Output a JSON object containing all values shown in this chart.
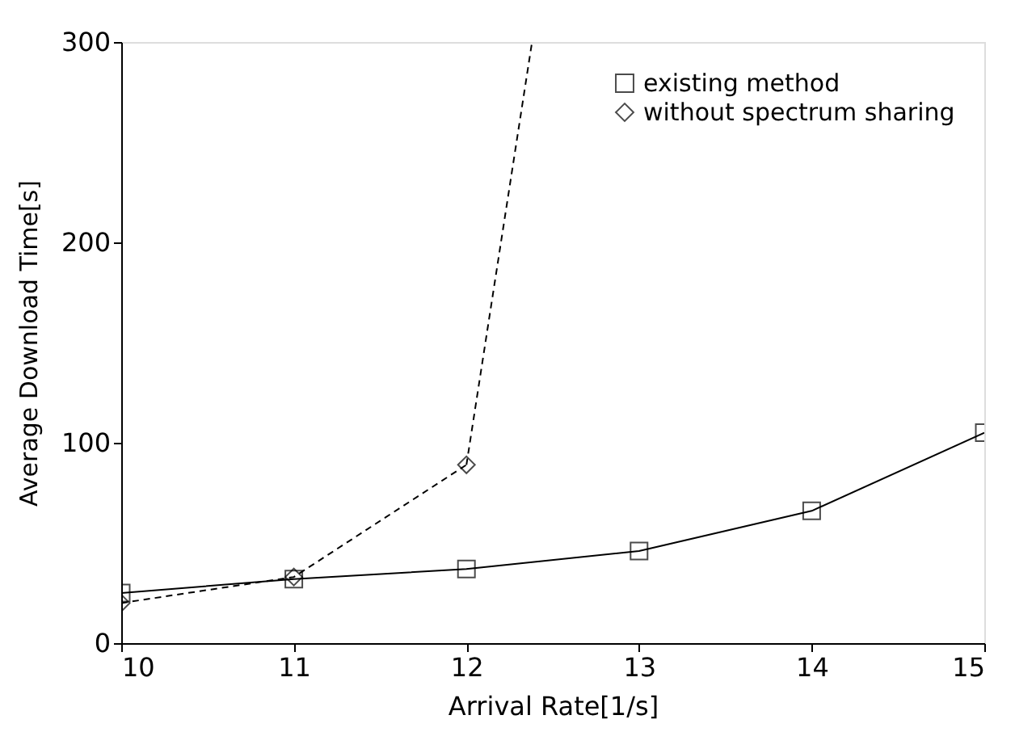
{
  "chart_data": {
    "type": "line",
    "xlabel": "Arrival Rate[1/s]",
    "ylabel": "Average Download Time[s]",
    "x": [
      10,
      11,
      12,
      13,
      14,
      15
    ],
    "series": [
      {
        "name": "existing method",
        "color": "#000000",
        "marker": "square",
        "line_style": "solid",
        "values": [
          25,
          32,
          37,
          46,
          66,
          105
        ]
      },
      {
        "name": "without spectrum sharing",
        "color": "#000000",
        "marker": "diamond",
        "line_style": "dashed",
        "x": [
          10,
          11,
          12
        ],
        "values": [
          20,
          33,
          89
        ]
      },
      {
        "color": "#000000",
        "marker": "none",
        "line_style": "dashed",
        "x": [
          12,
          12.38
        ],
        "values": [
          89,
          300
        ]
      }
    ],
    "xlim": [
      10,
      15
    ],
    "xticks": [
      10,
      11,
      12,
      13,
      14,
      15
    ],
    "ylim": [
      0,
      300
    ],
    "yticks": [
      0,
      100,
      200,
      300
    ],
    "grid": false,
    "legend": "top right"
  }
}
